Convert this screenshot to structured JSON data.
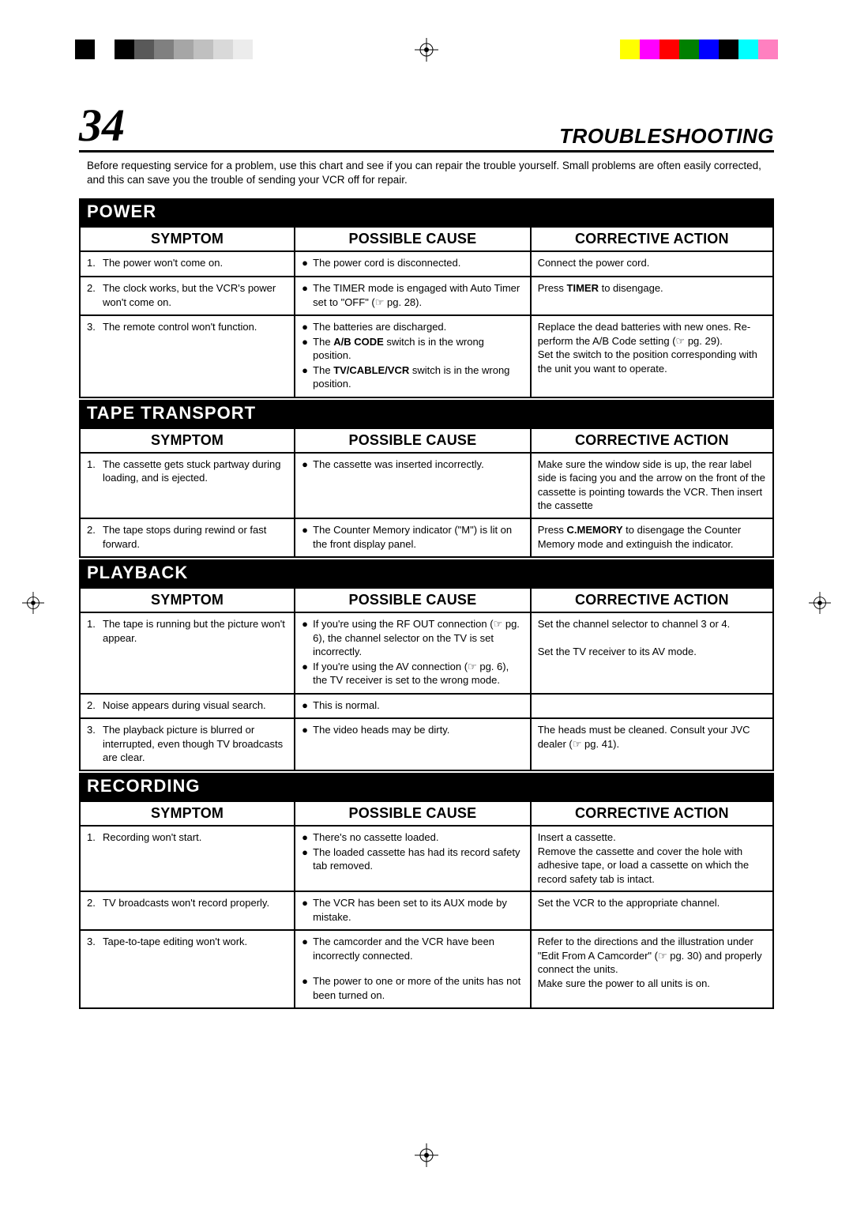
{
  "reg_marks": {
    "gray_colors": [
      "#000000",
      "#ffffff",
      "#000000",
      "#595959",
      "#808080",
      "#a6a6a6",
      "#c0c0c0",
      "#d9d9d9",
      "#ececec"
    ],
    "color_colors": [
      "#ffff00",
      "#ff00ff",
      "#ff0000",
      "#008000",
      "#0000ff",
      "#000000",
      "#00ffff",
      "#ff80c0"
    ]
  },
  "header": {
    "page_number": "34",
    "title": "TROUBLESHOOTING"
  },
  "intro": "Before requesting service for a problem, use this chart and see if you can repair the trouble yourself. Small problems are often easily corrected, and this can save you the trouble of sending your VCR off for repair.",
  "col_headers": {
    "symptom": "SYMPTOM",
    "cause": "POSSIBLE CAUSE",
    "action": "CORRECTIVE ACTION"
  },
  "sections": {
    "power": {
      "title": "POWER",
      "rows": [
        {
          "num": "1.",
          "symptom": "The power won't come on.",
          "causes": [
            "The power cord is disconnected."
          ],
          "action": "Connect the power cord."
        },
        {
          "num": "2.",
          "symptom": "The clock works, but the VCR's power won't come on.",
          "causes": [
            "The TIMER mode is engaged with Auto Timer set to \"OFF\" (☞ pg. 28)."
          ],
          "action": "Press <b>TIMER</b> to disengage."
        },
        {
          "num": "3.",
          "symptom": "The remote control won't function.",
          "causes": [
            "The batteries are discharged.",
            "The <b>A/B CODE</b> switch is in the wrong position.",
            "The <b>TV/CABLE/VCR</b> switch is in the wrong position."
          ],
          "action": "Replace the dead batteries with new ones. Re-perform the A/B Code setting (☞ pg. 29).<br>Set the switch to the position corresponding with the unit you want to operate."
        }
      ]
    },
    "tape": {
      "title": "TAPE TRANSPORT",
      "rows": [
        {
          "num": "1.",
          "symptom": "The cassette gets stuck partway during loading, and is ejected.",
          "causes": [
            "The cassette was inserted incorrectly."
          ],
          "action": "Make sure the window side is up, the rear label side is facing you and the arrow on the front of the cassette is pointing towards the VCR. Then insert the cassette"
        },
        {
          "num": "2.",
          "symptom": "The tape stops during rewind or fast forward.",
          "causes": [
            "The Counter Memory indicator (\"M\") is lit on the front display panel."
          ],
          "action": "Press <b>C.MEMORY</b> to disengage the Counter Memory mode and extinguish the indicator."
        }
      ]
    },
    "playback": {
      "title": "PLAYBACK",
      "rows": [
        {
          "num": "1.",
          "symptom": "The tape is running but the picture won't appear.",
          "causes": [
            "If you're using the RF OUT connection (☞ pg. 6), the channel selector on the TV is set incorrectly.",
            "If you're using the AV connection (☞ pg. 6), the TV receiver is set to the wrong mode."
          ],
          "action": "Set the channel selector to channel 3 or 4.<br><br>Set the TV receiver to its AV mode."
        },
        {
          "num": "2.",
          "symptom": "Noise appears during visual search.",
          "causes": [
            "This is normal."
          ],
          "action": ""
        },
        {
          "num": "3.",
          "symptom": "The playback picture is blurred or interrupted, even though TV broadcasts are clear.",
          "causes": [
            "The video heads may be dirty."
          ],
          "action": "The heads must be cleaned. Consult your JVC dealer (☞ pg. 41)."
        }
      ]
    },
    "recording": {
      "title": "RECORDING",
      "rows": [
        {
          "num": "1.",
          "symptom": "Recording won't start.",
          "causes": [
            "There's no cassette loaded.",
            "The loaded cassette has had its record safety tab removed."
          ],
          "action": "Insert a cassette.<br>Remove the cassette and cover the hole with adhesive tape, or load a cassette on which the record safety tab is intact."
        },
        {
          "num": "2.",
          "symptom": "TV broadcasts won't record properly.",
          "causes": [
            "The VCR has been set to its AUX mode by mistake."
          ],
          "action": "Set the VCR to the appropriate channel."
        },
        {
          "num": "3.",
          "symptom": "Tape-to-tape editing won't work.",
          "causes": [
            "The camcorder and the VCR have been incorrectly connected.",
            "",
            "The power to one or more of the units has not been turned on."
          ],
          "action": "Refer to the directions and the illustration under \"Edit From A Camcorder\" (☞ pg. 30) and properly connect the units.<br>Make sure the power to all units is on."
        }
      ]
    }
  }
}
